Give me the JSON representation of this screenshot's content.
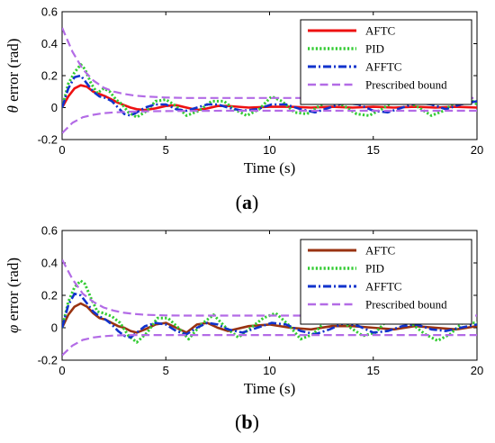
{
  "chart_data": [
    {
      "type": "line",
      "caption_open": "(",
      "caption_letter": "a",
      "caption_close": ")",
      "ylabel_symbol": "θ",
      "ylabel_text": " error (rad)",
      "xlabel": "Time (s)",
      "xlim": [
        0,
        20
      ],
      "ylim": [
        -0.2,
        0.6
      ],
      "xticks": [
        0,
        5,
        10,
        15,
        20
      ],
      "yticks": [
        -0.2,
        0,
        0.2,
        0.4,
        0.6
      ],
      "legend_position": "top-right",
      "series": [
        {
          "name": "AFTC",
          "color": "#ee1111",
          "style": "solid",
          "x": [
            0,
            0.3,
            0.6,
            0.9,
            1.2,
            1.5,
            1.8,
            2.1,
            2.4,
            2.7,
            3.0,
            3.3,
            3.6,
            4.0,
            4.5,
            5.0,
            5.5,
            6.0,
            6.5,
            7.0,
            7.5,
            8.0,
            9.0,
            10.0,
            11.0,
            12.0,
            13.0,
            14.0,
            15.0,
            16.0,
            17.0,
            18.0,
            19.0,
            20.0
          ],
          "y": [
            0,
            0.07,
            0.12,
            0.14,
            0.13,
            0.1,
            0.085,
            0.07,
            0.05,
            0.03,
            0.015,
            0,
            -0.01,
            -0.015,
            -0.005,
            0.01,
            0.015,
            0,
            -0.015,
            -0.005,
            0.01,
            0.01,
            0,
            0.005,
            0.005,
            0,
            0.005,
            0,
            0.005,
            0,
            0.005,
            0,
            0.005,
            0
          ]
        },
        {
          "name": "PID",
          "color": "#33cc33",
          "style": "dotted",
          "x": [
            0,
            0.3,
            0.6,
            0.9,
            1.1,
            1.4,
            1.7,
            2.0,
            2.3,
            2.6,
            2.9,
            3.2,
            3.6,
            4.1,
            4.5,
            5.0,
            5.5,
            6.0,
            6.6,
            7.2,
            7.8,
            8.3,
            8.9,
            9.5,
            10.1,
            10.6,
            11.2,
            11.8,
            12.4,
            13.0,
            13.6,
            14.2,
            14.8,
            15.4,
            16.0,
            16.6,
            17.2,
            17.8,
            18.4,
            19.0,
            19.6,
            20.0
          ],
          "y": [
            0,
            0.15,
            0.22,
            0.27,
            0.24,
            0.15,
            0.09,
            0.12,
            0.1,
            0.05,
            0.02,
            -0.03,
            -0.06,
            -0.02,
            0.04,
            0.05,
            0.01,
            -0.05,
            -0.02,
            0.04,
            0.04,
            -0.01,
            -0.05,
            -0.01,
            0.07,
            0.04,
            -0.03,
            -0.04,
            0.01,
            0.05,
            0.01,
            -0.04,
            -0.05,
            -0.01,
            0.04,
            0.04,
            0.0,
            -0.05,
            -0.02,
            0.04,
            0.06,
            0.02
          ]
        },
        {
          "name": "AFFTC",
          "color": "#1133cc",
          "style": "dashdot",
          "x": [
            0,
            0.3,
            0.6,
            0.9,
            1.2,
            1.5,
            1.8,
            2.1,
            2.4,
            2.7,
            3.0,
            3.3,
            3.6,
            4.0,
            4.5,
            5.0,
            5.5,
            6.0,
            6.5,
            7.0,
            7.5,
            8.0,
            8.7,
            9.4,
            10.1,
            10.8,
            11.5,
            12.2,
            12.9,
            13.6,
            14.3,
            15.0,
            15.7,
            16.4,
            17.1,
            17.8,
            18.5,
            19.2,
            20.0
          ],
          "y": [
            0,
            0.12,
            0.19,
            0.2,
            0.15,
            0.1,
            0.07,
            0.06,
            0.04,
            0.0,
            -0.04,
            -0.05,
            -0.03,
            0.0,
            0.02,
            0.02,
            -0.01,
            -0.02,
            0.0,
            0.02,
            0.02,
            0.0,
            -0.02,
            -0.01,
            0.02,
            0.02,
            -0.01,
            -0.03,
            0.0,
            0.03,
            0.02,
            -0.02,
            -0.03,
            0.0,
            0.03,
            0.02,
            -0.01,
            0.02,
            0.04
          ]
        },
        {
          "name": "Prescribed bound",
          "color": "#b36be6",
          "style": "dashed",
          "x": [
            0,
            0.5,
            1,
            1.5,
            2,
            2.5,
            3,
            3.5,
            4,
            5,
            6,
            8,
            10,
            12,
            14,
            16,
            18,
            20
          ],
          "y": [
            0.5,
            0.35,
            0.24,
            0.17,
            0.125,
            0.1,
            0.085,
            0.075,
            0.07,
            0.063,
            0.06,
            0.06,
            0.06,
            0.06,
            0.06,
            0.06,
            0.06,
            0.06
          ]
        },
        {
          "name": "",
          "color": "#b36be6",
          "style": "dashed",
          "x": [
            0,
            0.5,
            1,
            1.5,
            2,
            2.5,
            3,
            3.5,
            4,
            5,
            6,
            8,
            10,
            12,
            14,
            16,
            18,
            20
          ],
          "y": [
            -0.16,
            -0.095,
            -0.06,
            -0.045,
            -0.035,
            -0.03,
            -0.027,
            -0.025,
            -0.023,
            -0.022,
            -0.021,
            -0.02,
            -0.02,
            -0.02,
            -0.02,
            -0.02,
            -0.02,
            -0.02
          ]
        }
      ]
    },
    {
      "type": "line",
      "caption_open": "(",
      "caption_letter": "b",
      "caption_close": ")",
      "ylabel_symbol": "φ",
      "ylabel_text": " error (rad)",
      "xlabel": "Time (s)",
      "xlim": [
        0,
        20
      ],
      "ylim": [
        -0.2,
        0.6
      ],
      "xticks": [
        0,
        5,
        10,
        15,
        20
      ],
      "yticks": [
        -0.2,
        0,
        0.2,
        0.4,
        0.6
      ],
      "legend_position": "top-right",
      "series": [
        {
          "name": "AFTC",
          "color": "#993311",
          "style": "solid",
          "x": [
            0,
            0.3,
            0.6,
            0.9,
            1.2,
            1.5,
            1.8,
            2.1,
            2.4,
            2.7,
            3.0,
            3.3,
            3.6,
            4.0,
            4.5,
            5.0,
            5.5,
            6.0,
            6.5,
            7.0,
            7.5,
            8.0,
            9.0,
            10.0,
            11.0,
            12.0,
            13.0,
            14.0,
            15.0,
            16.0,
            17.0,
            18.0,
            19.0,
            20.0
          ],
          "y": [
            0,
            0.08,
            0.13,
            0.15,
            0.13,
            0.09,
            0.06,
            0.05,
            0.03,
            0.01,
            0.0,
            -0.02,
            -0.03,
            -0.01,
            0.02,
            0.03,
            0.0,
            -0.03,
            0.02,
            0.03,
            0.0,
            -0.02,
            0.01,
            0.02,
            0.0,
            -0.01,
            0.01,
            0.01,
            0.0,
            -0.01,
            0.01,
            0.0,
            -0.01,
            0.01
          ]
        },
        {
          "name": "PID",
          "color": "#33cc33",
          "style": "dotted",
          "x": [
            0,
            0.3,
            0.6,
            0.9,
            1.1,
            1.4,
            1.7,
            2.0,
            2.4,
            2.8,
            3.2,
            3.6,
            4.1,
            4.6,
            5.1,
            5.6,
            6.1,
            6.7,
            7.3,
            7.9,
            8.5,
            9.1,
            9.7,
            10.3,
            10.9,
            11.5,
            12.1,
            12.7,
            13.3,
            13.9,
            14.5,
            15.1,
            15.7,
            16.3,
            16.9,
            17.5,
            18.1,
            18.7,
            19.3,
            20.0
          ],
          "y": [
            0,
            0.16,
            0.25,
            0.29,
            0.27,
            0.18,
            0.1,
            0.09,
            0.07,
            0.03,
            -0.05,
            -0.09,
            -0.03,
            0.06,
            0.06,
            0.0,
            -0.07,
            0.02,
            0.08,
            0.0,
            -0.06,
            0.0,
            0.06,
            0.09,
            0.02,
            -0.07,
            -0.04,
            0.04,
            0.06,
            0.0,
            -0.05,
            -0.03,
            0.05,
            0.08,
            0.02,
            -0.04,
            -0.08,
            -0.04,
            0.03,
            0.03
          ]
        },
        {
          "name": "AFFTC",
          "color": "#1133cc",
          "style": "dashdot",
          "x": [
            0,
            0.3,
            0.6,
            0.9,
            1.2,
            1.5,
            1.8,
            2.1,
            2.4,
            2.7,
            3.0,
            3.3,
            3.6,
            4.0,
            4.5,
            5.0,
            5.5,
            6.0,
            6.5,
            7.0,
            7.5,
            8.0,
            8.7,
            9.4,
            10.1,
            10.8,
            11.5,
            12.2,
            12.9,
            13.6,
            14.3,
            15.0,
            15.7,
            16.4,
            17.1,
            17.8,
            18.5,
            19.2,
            20.0
          ],
          "y": [
            0,
            0.14,
            0.21,
            0.2,
            0.15,
            0.1,
            0.07,
            0.05,
            0.02,
            -0.02,
            -0.05,
            -0.06,
            -0.03,
            0.01,
            0.03,
            0.02,
            -0.02,
            -0.04,
            0.0,
            0.03,
            0.02,
            -0.01,
            -0.03,
            0.0,
            0.03,
            0.02,
            -0.02,
            -0.04,
            -0.01,
            0.03,
            0.01,
            -0.03,
            -0.02,
            0.01,
            0.02,
            -0.01,
            -0.02,
            0.0,
            0.02
          ]
        },
        {
          "name": "Prescribed bound",
          "color": "#b36be6",
          "style": "dashed",
          "x": [
            0,
            0.5,
            1,
            1.5,
            2,
            2.5,
            3,
            3.5,
            4,
            5,
            6,
            8,
            10,
            12,
            14,
            16,
            18,
            20
          ],
          "y": [
            0.42,
            0.3,
            0.21,
            0.16,
            0.125,
            0.105,
            0.092,
            0.085,
            0.08,
            0.076,
            0.075,
            0.075,
            0.075,
            0.075,
            0.075,
            0.075,
            0.075,
            0.075
          ]
        },
        {
          "name": "",
          "color": "#b36be6",
          "style": "dashed",
          "x": [
            0,
            0.5,
            1,
            1.5,
            2,
            2.5,
            3,
            3.5,
            4,
            5,
            6,
            8,
            10,
            12,
            14,
            16,
            18,
            20
          ],
          "y": [
            -0.17,
            -0.11,
            -0.075,
            -0.06,
            -0.052,
            -0.048,
            -0.046,
            -0.045,
            -0.045,
            -0.045,
            -0.045,
            -0.045,
            -0.045,
            -0.045,
            -0.045,
            -0.045,
            -0.045,
            -0.045
          ]
        }
      ]
    }
  ]
}
